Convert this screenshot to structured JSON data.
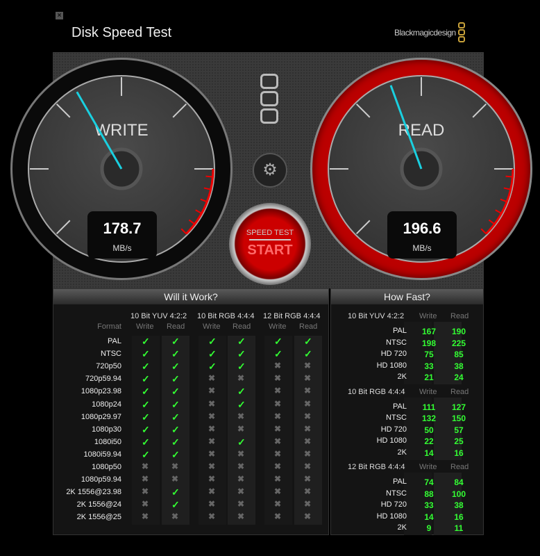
{
  "window": {
    "title": "Disk Speed Test",
    "close_icon": "close-icon",
    "brand": "Blackmagicdesign"
  },
  "gauges": {
    "write": {
      "label": "WRITE",
      "value": "178.7",
      "unit": "MB/s",
      "ring_color": "#0a0a0a",
      "needle_color": "#1ad0e0"
    },
    "read": {
      "label": "READ",
      "value": "196.6",
      "unit": "MB/s",
      "ring_color": "#bb0000",
      "needle_color": "#1ad0e0"
    }
  },
  "controls": {
    "settings_icon": "gear-icon",
    "start_top": "SPEED TEST",
    "start_label": "START"
  },
  "will_it_work": {
    "title": "Will it Work?",
    "format_header": "Format",
    "groups": [
      "10 Bit YUV 4:2:2",
      "10 Bit RGB 4:4:4",
      "12 Bit RGB 4:4:4"
    ],
    "subheaders": [
      "Write",
      "Read"
    ],
    "rows": [
      {
        "format": "PAL",
        "results": [
          true,
          true,
          true,
          true,
          true,
          true
        ]
      },
      {
        "format": "NTSC",
        "results": [
          true,
          true,
          true,
          true,
          true,
          true
        ]
      },
      {
        "format": "720p50",
        "results": [
          true,
          true,
          true,
          true,
          false,
          false
        ]
      },
      {
        "format": "720p59.94",
        "results": [
          true,
          true,
          false,
          false,
          false,
          false
        ]
      },
      {
        "format": "1080p23.98",
        "results": [
          true,
          true,
          false,
          true,
          false,
          false
        ]
      },
      {
        "format": "1080p24",
        "results": [
          true,
          true,
          false,
          true,
          false,
          false
        ]
      },
      {
        "format": "1080p29.97",
        "results": [
          true,
          true,
          false,
          false,
          false,
          false
        ]
      },
      {
        "format": "1080p30",
        "results": [
          true,
          true,
          false,
          false,
          false,
          false
        ]
      },
      {
        "format": "1080i50",
        "results": [
          true,
          true,
          false,
          true,
          false,
          false
        ]
      },
      {
        "format": "1080i59.94",
        "results": [
          true,
          true,
          false,
          false,
          false,
          false
        ]
      },
      {
        "format": "1080p50",
        "results": [
          false,
          false,
          false,
          false,
          false,
          false
        ]
      },
      {
        "format": "1080p59.94",
        "results": [
          false,
          false,
          false,
          false,
          false,
          false
        ]
      },
      {
        "format": "2K 1556@23.98",
        "results": [
          false,
          true,
          false,
          false,
          false,
          false
        ]
      },
      {
        "format": "2K 1556@24",
        "results": [
          false,
          true,
          false,
          false,
          false,
          false
        ]
      },
      {
        "format": "2K 1556@25",
        "results": [
          false,
          false,
          false,
          false,
          false,
          false
        ]
      }
    ],
    "check_symbol": "✓",
    "cross_symbol": "✖"
  },
  "how_fast": {
    "title": "How Fast?",
    "groups": [
      {
        "name": "10 Bit YUV 4:2:2",
        "write": "Write",
        "read": "Read",
        "rows": [
          {
            "format": "PAL",
            "write": "167",
            "read": "190"
          },
          {
            "format": "NTSC",
            "write": "198",
            "read": "225"
          },
          {
            "format": "HD 720",
            "write": "75",
            "read": "85"
          },
          {
            "format": "HD 1080",
            "write": "33",
            "read": "38"
          },
          {
            "format": "2K",
            "write": "21",
            "read": "24"
          }
        ]
      },
      {
        "name": "10 Bit RGB 4:4:4",
        "write": "Write",
        "read": "Read",
        "rows": [
          {
            "format": "PAL",
            "write": "111",
            "read": "127"
          },
          {
            "format": "NTSC",
            "write": "132",
            "read": "150"
          },
          {
            "format": "HD 720",
            "write": "50",
            "read": "57"
          },
          {
            "format": "HD 1080",
            "write": "22",
            "read": "25"
          },
          {
            "format": "2K",
            "write": "14",
            "read": "16"
          }
        ]
      },
      {
        "name": "12 Bit RGB 4:4:4",
        "write": "Write",
        "read": "Read",
        "rows": [
          {
            "format": "PAL",
            "write": "74",
            "read": "84"
          },
          {
            "format": "NTSC",
            "write": "88",
            "read": "100"
          },
          {
            "format": "HD 720",
            "write": "33",
            "read": "38"
          },
          {
            "format": "HD 1080",
            "write": "14",
            "read": "16"
          },
          {
            "format": "2K",
            "write": "9",
            "read": "11"
          }
        ]
      }
    ]
  }
}
